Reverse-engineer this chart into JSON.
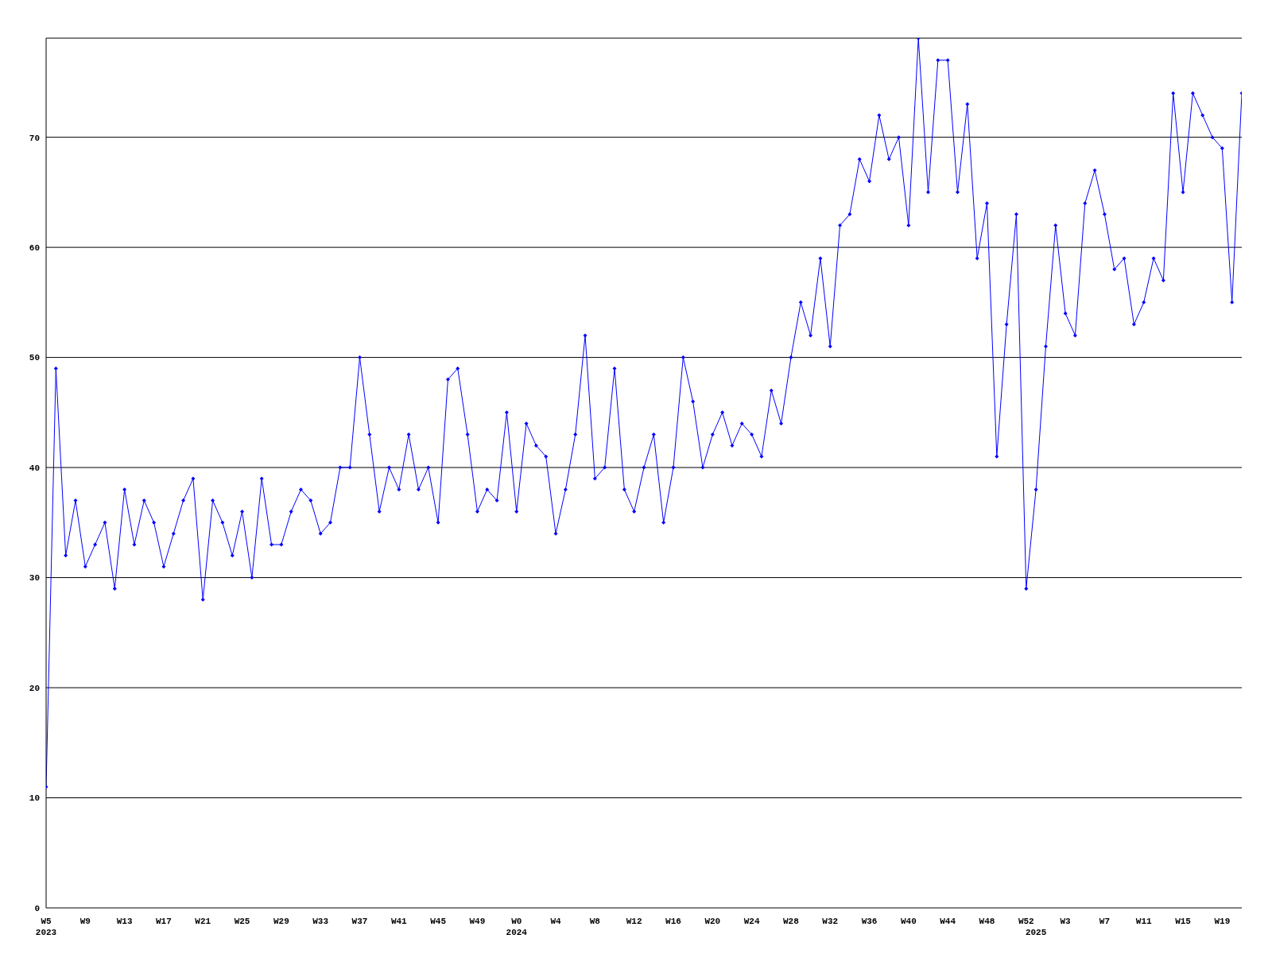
{
  "chart_data": {
    "type": "line",
    "color": "#0000ff",
    "marker": "diamond",
    "grid": "y",
    "ylim": [
      0,
      79
    ],
    "yticks": [
      0,
      10,
      20,
      30,
      40,
      50,
      60,
      70
    ],
    "categories": [
      "W5\n2023",
      null,
      null,
      null,
      "W9",
      null,
      null,
      null,
      "W13",
      null,
      null,
      null,
      "W17",
      null,
      null,
      null,
      "W21",
      null,
      null,
      null,
      "W25",
      null,
      null,
      null,
      "W29",
      null,
      null,
      null,
      "W33",
      null,
      null,
      null,
      "W37",
      null,
      null,
      null,
      "W41",
      null,
      null,
      null,
      "W45",
      null,
      null,
      null,
      "W49",
      null,
      null,
      null,
      "W0\n2024",
      null,
      null,
      null,
      "W4",
      null,
      null,
      null,
      "W8",
      null,
      null,
      null,
      "W12",
      null,
      null,
      null,
      "W16",
      null,
      null,
      null,
      "W20",
      null,
      null,
      null,
      "W24",
      null,
      null,
      null,
      "W28",
      null,
      null,
      null,
      "W32",
      null,
      null,
      null,
      "W36",
      null,
      null,
      null,
      "W40",
      null,
      null,
      null,
      "W44",
      null,
      null,
      null,
      "W48",
      null,
      null,
      null,
      "W52",
      "\n2025",
      null,
      null,
      "W3",
      null,
      null,
      null,
      "W7",
      null,
      null,
      null,
      "W11",
      null,
      null,
      null,
      "W15",
      null,
      null,
      null,
      "W19",
      null,
      null
    ],
    "values": [
      11,
      49,
      32,
      37,
      31,
      33,
      35,
      29,
      38,
      33,
      37,
      35,
      31,
      34,
      37,
      39,
      28,
      37,
      35,
      32,
      36,
      30,
      39,
      33,
      33,
      36,
      38,
      37,
      34,
      35,
      40,
      40,
      50,
      43,
      36,
      40,
      38,
      43,
      38,
      40,
      35,
      48,
      49,
      43,
      36,
      38,
      37,
      45,
      36,
      44,
      42,
      41,
      34,
      38,
      43,
      52,
      39,
      40,
      49,
      38,
      36,
      40,
      43,
      35,
      40,
      50,
      46,
      40,
      43,
      45,
      42,
      44,
      43,
      41,
      47,
      44,
      50,
      55,
      52,
      59,
      51,
      62,
      63,
      68,
      66,
      72,
      68,
      70,
      62,
      79,
      65,
      77,
      77,
      65,
      73,
      59,
      64,
      41,
      53,
      63,
      29,
      38,
      51,
      62,
      54,
      52,
      64,
      67,
      63,
      58,
      59,
      53,
      55,
      59,
      57,
      74,
      65,
      74,
      72,
      70,
      69,
      55,
      74
    ]
  }
}
